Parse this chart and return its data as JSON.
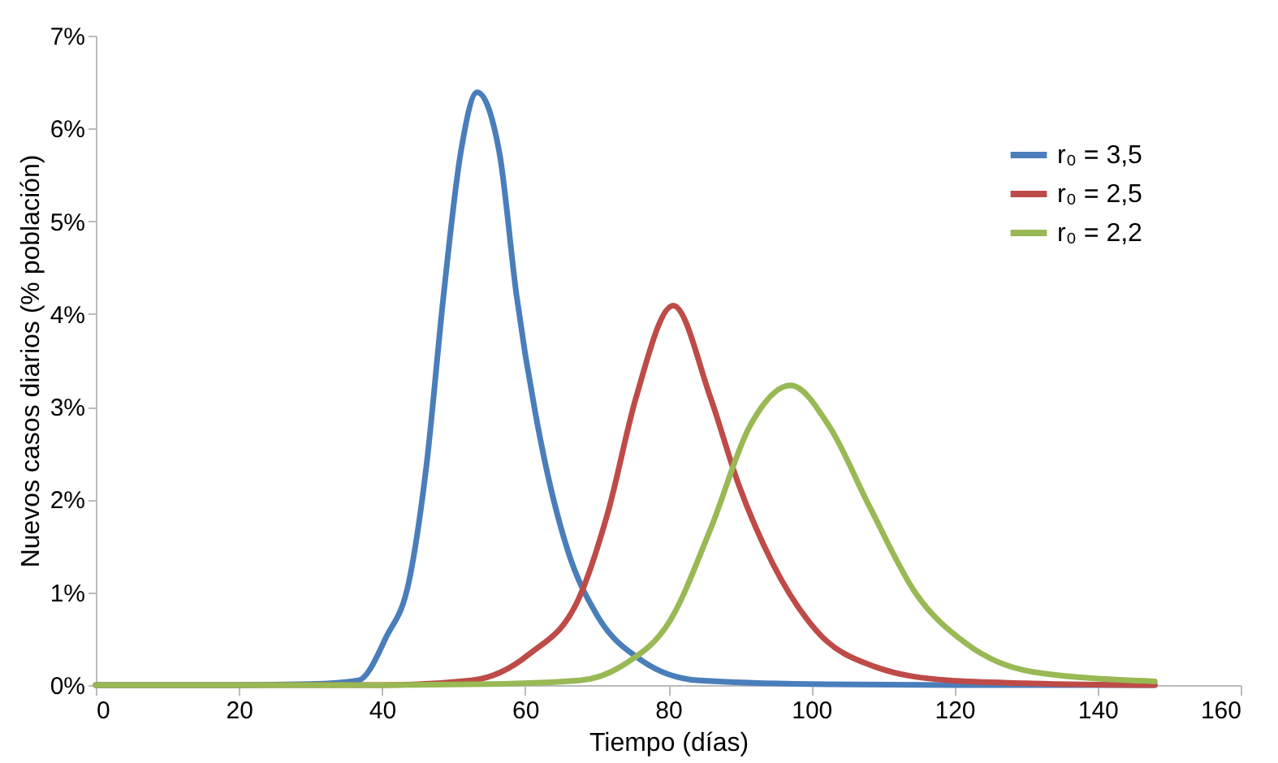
{
  "chart_data": {
    "type": "line",
    "xlabel": "Tiempo (días)",
    "ylabel": "Nuevos  casos  diarios   (% población)",
    "xlim": [
      0,
      160
    ],
    "xticks": [
      0,
      20,
      40,
      60,
      80,
      100,
      120,
      140,
      160
    ],
    "ylim": [
      0,
      7
    ],
    "yticks": [
      {
        "value": 0,
        "label": "0%"
      },
      {
        "value": 1,
        "label": "1%"
      },
      {
        "value": 2,
        "label": "2%"
      },
      {
        "value": 3,
        "label": "3%"
      },
      {
        "value": 4,
        "label": "4%"
      },
      {
        "value": 5,
        "label": "5%"
      },
      {
        "value": 6,
        "label": "6%"
      },
      {
        "value": 7,
        "label": "7%"
      }
    ],
    "grid": false,
    "legend": "top right",
    "marker": "none",
    "line_style": "solid",
    "series": [
      {
        "name": "r₀ = 3,5",
        "color": "#4a7ebb",
        "x": [
          0,
          20,
          30,
          36.7,
          40.6,
          43.8,
          46.2,
          48.6,
          51,
          53.3,
          56.4,
          58.8,
          62.1,
          66,
          70,
          76.4,
          84.3,
          100,
          120,
          148
        ],
        "values": [
          0,
          0,
          0.01,
          0.05,
          0.52,
          1.13,
          2.36,
          4.2,
          5.74,
          6.39,
          5.74,
          4.2,
          2.66,
          1.44,
          0.76,
          0.26,
          0.05,
          0.01,
          0,
          0
        ]
      },
      {
        "name": "r₀ = 2,5",
        "color": "#be4b48",
        "x": [
          0,
          20,
          40,
          52.5,
          60.5,
          67.6,
          71.6,
          75.5,
          80.7,
          85.9,
          89.8,
          94.6,
          100.9,
          108.8,
          119.3,
          130,
          148
        ],
        "values": [
          0,
          0,
          0,
          0.05,
          0.33,
          0.95,
          1.87,
          3.1,
          4.09,
          3.1,
          2.17,
          1.31,
          0.57,
          0.2,
          0.05,
          0.02,
          0
        ]
      },
      {
        "name": "r₀ = 2,2",
        "color": "#98b954",
        "x": [
          0,
          20,
          40,
          55,
          67.6,
          74,
          80.3,
          85.9,
          91.4,
          97.1,
          102.5,
          108.1,
          114.5,
          121.6,
          131.1,
          148
        ],
        "values": [
          0,
          0,
          0,
          0.01,
          0.05,
          0.23,
          0.7,
          1.68,
          2.79,
          3.23,
          2.79,
          1.93,
          1.0,
          0.45,
          0.14,
          0.04
        ]
      }
    ]
  }
}
